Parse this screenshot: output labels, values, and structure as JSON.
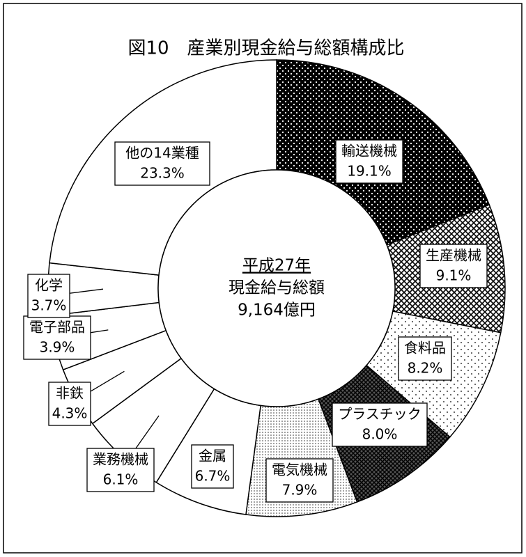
{
  "chart_data": {
    "type": "donut",
    "title": "図10　産業別現金給与総額構成比",
    "center_text": [
      "平成27年",
      "現金給与総額",
      "9,164億円"
    ],
    "categories": [
      "輸送機械",
      "生産機械",
      "食料品",
      "プラスチック",
      "電気機械",
      "金属",
      "業務機械",
      "非鉄",
      "電子部品",
      "化学",
      "他の14業種"
    ],
    "values": [
      19.1,
      9.1,
      8.2,
      8.0,
      7.9,
      6.7,
      6.1,
      4.3,
      3.9,
      3.7,
      23.3
    ],
    "value_labels": [
      "19.1%",
      "9.1%",
      "8.2%",
      "8.0%",
      "7.9%",
      "6.7%",
      "6.1%",
      "4.3%",
      "3.9%",
      "3.7%",
      "23.3%"
    ],
    "patterns": [
      "dots-on-black",
      "crosshatch",
      "sparse-dots",
      "dark-crosshatch",
      "fine-dots",
      "none",
      "none",
      "none",
      "none",
      "none",
      "none"
    ]
  }
}
